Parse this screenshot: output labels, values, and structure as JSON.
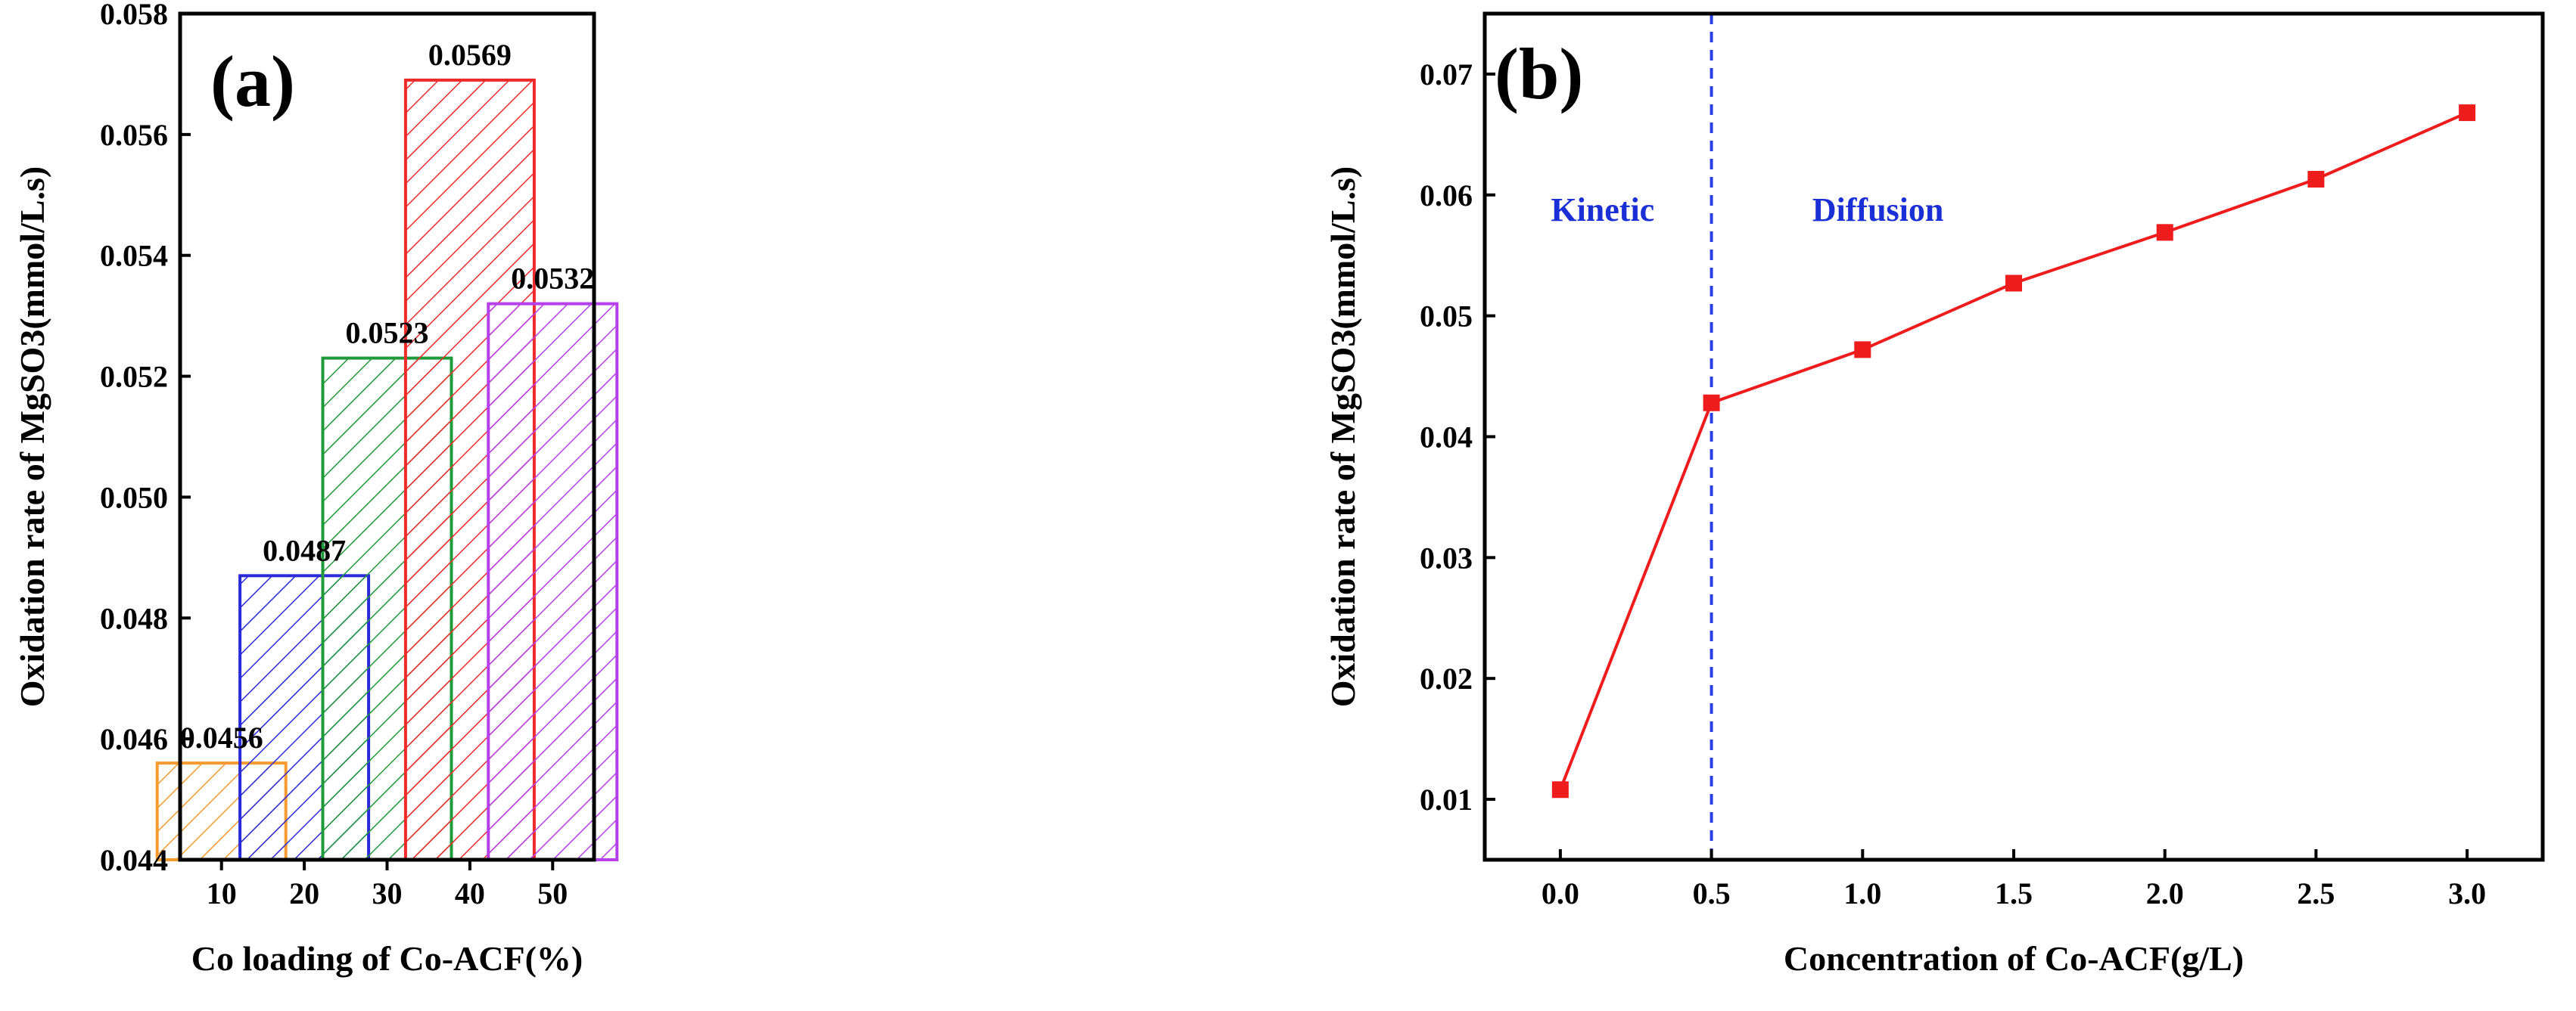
{
  "chart_data": [
    {
      "type": "bar",
      "panel_label": "(a)",
      "categories": [
        "10",
        "20",
        "30",
        "40",
        "50"
      ],
      "values": [
        0.0456,
        0.0487,
        0.0523,
        0.0569,
        0.0532
      ],
      "value_labels": [
        "0.0456",
        "0.0487",
        "0.0523",
        "0.0569",
        "0.0532"
      ],
      "colors": [
        "#f59a2f",
        "#2a2ad8",
        "#1f9a3a",
        "#ef2a2a",
        "#b540ea"
      ],
      "hatch": "diagonal",
      "xlabel": "Co loading of Co-ACF(%)",
      "ylabel": "Oxidation rate of MgSO3(mmol/L.s)",
      "ylim": [
        0.044,
        0.058
      ],
      "yticks": [
        0.044,
        0.046,
        0.048,
        0.05,
        0.052,
        0.054,
        0.056,
        0.058
      ],
      "ytick_labels": [
        "0.044",
        "0.046",
        "0.048",
        "0.050",
        "0.052",
        "0.054",
        "0.056",
        "0.058"
      ]
    },
    {
      "type": "line",
      "panel_label": "(b)",
      "series": [
        {
          "name": "Co-ACF",
          "color": "#ee1c1c",
          "x": [
            0.0,
            0.5,
            1.0,
            1.5,
            2.0,
            2.5,
            3.0
          ],
          "y": [
            0.0108,
            0.0428,
            0.0472,
            0.0527,
            0.0569,
            0.0613,
            0.0668
          ]
        }
      ],
      "xlabel": "Concentration of Co-ACF(g/L)",
      "ylabel": "Oxidation rate of MgSO3(mmol/L.s)",
      "xlim": [
        -0.25,
        3.25
      ],
      "ylim": [
        0.005,
        0.075
      ],
      "xticks": [
        0.0,
        0.5,
        1.0,
        1.5,
        2.0,
        2.5,
        3.0
      ],
      "xtick_labels": [
        "0.0",
        "0.5",
        "1.0",
        "1.5",
        "2.0",
        "2.5",
        "3.0"
      ],
      "yticks": [
        0.01,
        0.02,
        0.03,
        0.04,
        0.05,
        0.06,
        0.07
      ],
      "ytick_labels": [
        "0.01",
        "0.02",
        "0.03",
        "0.04",
        "0.05",
        "0.06",
        "0.07"
      ],
      "divider_x": 0.5,
      "divider_color": "#2a3fe6",
      "regions": [
        "Kinetic",
        "Diffusion"
      ]
    }
  ]
}
